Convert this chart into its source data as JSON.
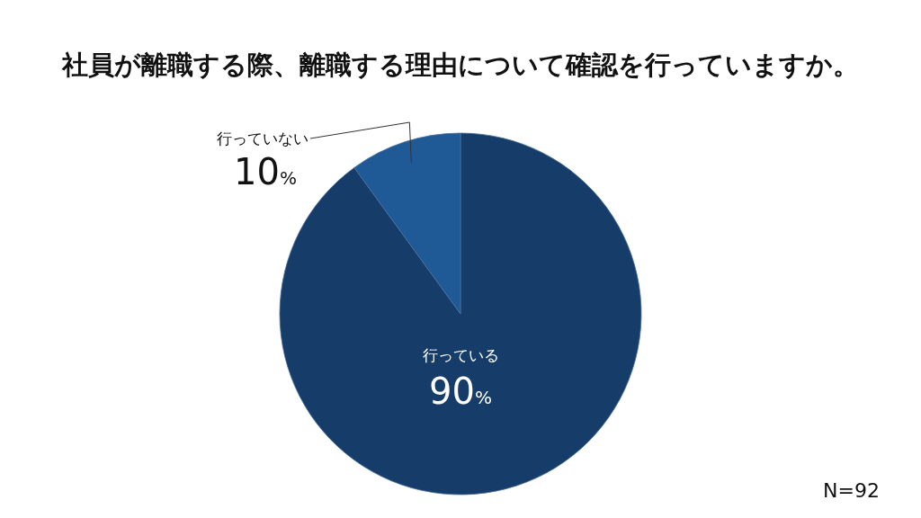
{
  "chart_data": {
    "type": "pie",
    "title": "社員が離職する際、離職する理由について確認を行っていますか。",
    "categories": [
      "行っている",
      "行っていない"
    ],
    "values": [
      90,
      10
    ],
    "colors": [
      "#163c69",
      "#1f5a97"
    ],
    "value_labels": [
      "90%",
      "10%"
    ],
    "annotations": [
      "N=92"
    ]
  }
}
